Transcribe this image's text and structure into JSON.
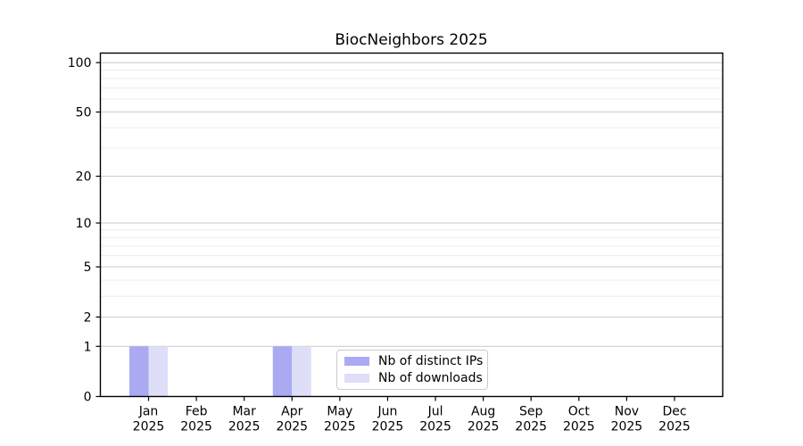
{
  "title": "BiocNeighbors 2025",
  "chart_data": {
    "type": "bar",
    "title": "BiocNeighbors 2025",
    "categories": [
      "Jan 2025",
      "Feb 2025",
      "Mar 2025",
      "Apr 2025",
      "May 2025",
      "Jun 2025",
      "Jul 2025",
      "Aug 2025",
      "Sep 2025",
      "Oct 2025",
      "Nov 2025",
      "Dec 2025"
    ],
    "series": [
      {
        "name": "Nb of distinct IPs",
        "color": "#aaaaf2",
        "values": [
          1,
          0,
          0,
          1,
          0,
          0,
          0,
          0,
          0,
          0,
          0,
          0
        ]
      },
      {
        "name": "Nb of downloads",
        "color": "#dedef8",
        "values": [
          1,
          0,
          0,
          1,
          0,
          0,
          0,
          0,
          0,
          0,
          0,
          0
        ]
      }
    ],
    "xlabel": "",
    "ylabel": "",
    "yscale": "log1p",
    "ylim": [
      0,
      115
    ],
    "y_ticks": [
      0,
      1,
      2,
      5,
      10,
      20,
      50,
      100
    ],
    "y_minor_gridlines": [
      3,
      4,
      6,
      7,
      8,
      9,
      30,
      40,
      60,
      70,
      80,
      90
    ],
    "grid": true,
    "legend_position": "lower center"
  },
  "legend": {
    "entries": [
      {
        "label": "Nb of distinct IPs",
        "color": "#aaaaf2"
      },
      {
        "label": "Nb of downloads",
        "color": "#dedef8"
      }
    ]
  },
  "colors": {
    "spine": "#000000",
    "major_grid": "#c9c9c9",
    "minor_grid": "#ececec",
    "tick_text": "#000000",
    "background": "#ffffff"
  }
}
